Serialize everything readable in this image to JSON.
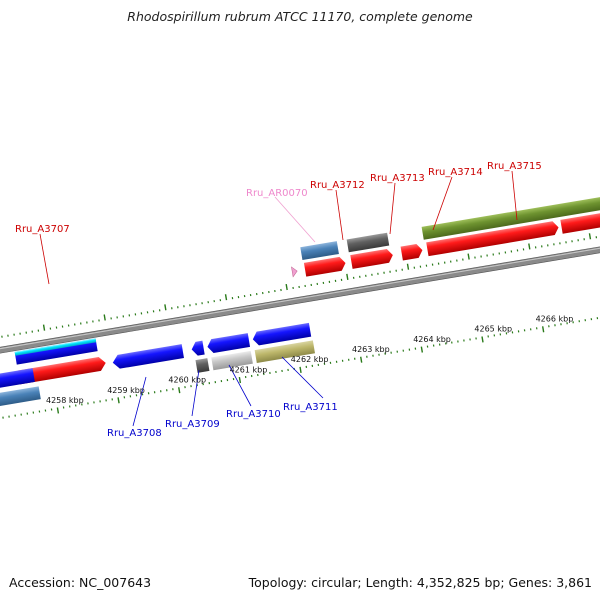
{
  "title": "Rhodospirillum rubrum ATCC 11170, complete genome",
  "accession": "Accession: NC_007643",
  "topology": "Topology: circular; Length: 4,352,825 bp; Genes: 3,861",
  "colors": {
    "forward_label": "#cc0000",
    "reverse_label": "#0000cc",
    "rna_label": "#ee88cc",
    "tick": "#2a7a1a",
    "backbone": "#808080"
  },
  "scale_labels": [
    {
      "kbp": 4258,
      "text": "4258 kbp"
    },
    {
      "kbp": 4259,
      "text": "4259 kbp"
    },
    {
      "kbp": 4260,
      "text": "4260 kbp"
    },
    {
      "kbp": 4261,
      "text": "4261 kbp"
    },
    {
      "kbp": 4262,
      "text": "4262 kbp"
    },
    {
      "kbp": 4263,
      "text": "4263 kbp"
    },
    {
      "kbp": 4264,
      "text": "4264 kbp"
    },
    {
      "kbp": 4265,
      "text": "4265 kbp"
    },
    {
      "kbp": 4266,
      "text": "4266 kbp"
    }
  ],
  "gene_labels_forward": [
    "Rru_A3707",
    "Rru_A3712",
    "Rru_A3713",
    "Rru_A3714",
    "Rru_A3715"
  ],
  "gene_labels_rna": [
    "Rru_AR0070"
  ],
  "gene_labels_reverse": [
    "Rru_A3708",
    "Rru_A3709",
    "Rru_A3710",
    "Rru_A3711"
  ]
}
